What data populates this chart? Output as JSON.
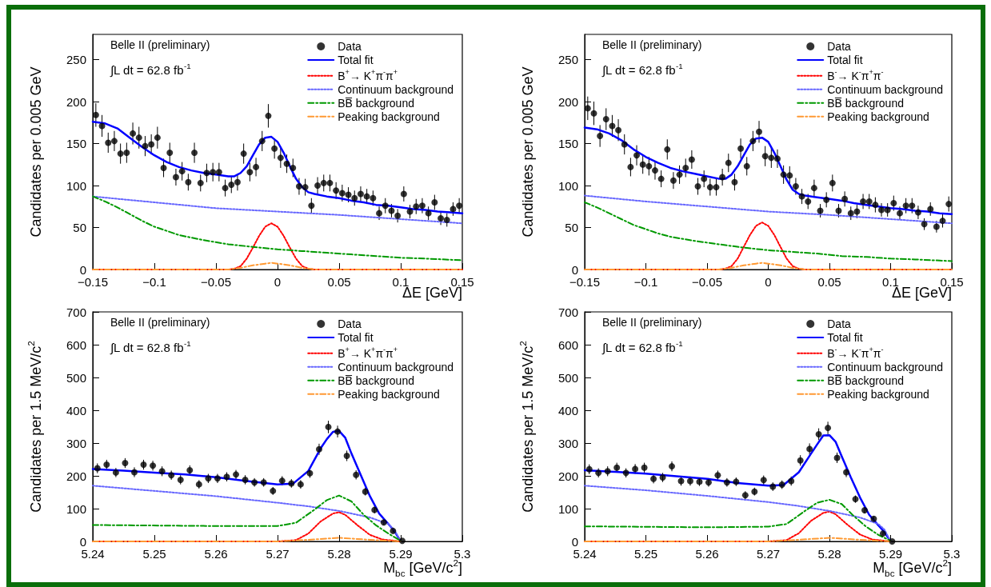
{
  "chart_data": [
    {
      "type": "line",
      "xlabel": "ΔE [GeV]",
      "ylabel": "Candidates per 0.005 GeV",
      "annotations": [
        "Belle II (preliminary)",
        "∫L dt = 62.8 fb$^{-1}$"
      ],
      "legend": "top right",
      "xlim": [
        -0.15,
        0.15
      ],
      "xticks": [
        {
          "value": -0.15,
          "label": "−0.15"
        },
        {
          "value": -0.1,
          "label": "−0.1"
        },
        {
          "value": -0.05,
          "label": "−0.05"
        },
        0,
        0.05,
        0.1,
        0.15
      ],
      "ylim": [
        0,
        280
      ],
      "yticks": [
        0,
        50,
        100,
        150,
        200,
        250
      ],
      "series": [
        {
          "name": "Data",
          "type": "scatter",
          "marker": "circle",
          "color": "#000000",
          "x": [
            -0.1475,
            -0.1425,
            -0.1375,
            -0.1325,
            -0.1275,
            -0.1225,
            -0.1175,
            -0.1125,
            -0.1075,
            -0.1025,
            -0.0975,
            -0.0925,
            -0.0875,
            -0.0825,
            -0.0775,
            -0.0725,
            -0.0675,
            -0.0625,
            -0.0575,
            -0.0525,
            -0.0475,
            -0.0425,
            -0.0375,
            -0.0325,
            -0.0275,
            -0.0225,
            -0.0175,
            -0.0125,
            -0.0075,
            -0.0025,
            0.0025,
            0.0075,
            0.0125,
            0.0175,
            0.0225,
            0.0275,
            0.0325,
            0.0375,
            0.0425,
            0.0475,
            0.0525,
            0.0575,
            0.0625,
            0.0675,
            0.0725,
            0.0775,
            0.0825,
            0.0875,
            0.0925,
            0.0975,
            0.1025,
            0.1075,
            0.1125,
            0.1175,
            0.1225,
            0.1275,
            0.1325,
            0.1375,
            0.1425,
            0.1475
          ],
          "values": [
            184,
            171,
            151,
            153,
            138,
            139,
            162,
            157,
            147,
            149,
            157,
            121,
            139,
            110,
            117,
            104,
            139,
            103,
            115,
            116,
            116,
            97,
            101,
            104,
            138,
            116,
            122,
            153,
            183,
            144,
            133,
            126,
            121,
            99,
            98,
            76,
            100,
            103,
            103,
            94,
            91,
            89,
            85,
            90,
            87,
            85,
            67,
            76,
            70,
            64,
            90,
            69,
            75,
            76,
            67,
            80,
            61,
            59,
            72,
            76
          ],
          "errors": [
            14,
            13,
            12,
            12,
            12,
            12,
            13,
            13,
            12,
            12,
            13,
            11,
            12,
            10,
            11,
            10,
            12,
            10,
            11,
            11,
            11,
            10,
            10,
            10,
            12,
            11,
            11,
            12,
            14,
            12,
            12,
            11,
            11,
            10,
            10,
            9,
            10,
            10,
            10,
            10,
            10,
            9,
            9,
            9,
            9,
            9,
            8,
            9,
            8,
            8,
            9,
            8,
            9,
            9,
            8,
            9,
            8,
            8,
            8,
            9
          ]
        },
        {
          "name": "Total fit",
          "type": "line",
          "marker": "none",
          "line_style": "solid",
          "color": "#0000ff",
          "x": [
            -0.15,
            -0.14,
            -0.13,
            -0.12,
            -0.11,
            -0.1,
            -0.09,
            -0.08,
            -0.07,
            -0.06,
            -0.05,
            -0.04,
            -0.035,
            -0.03,
            -0.025,
            -0.02,
            -0.015,
            -0.01,
            -0.005,
            0,
            0.005,
            0.01,
            0.015,
            0.02,
            0.025,
            0.03,
            0.04,
            0.05,
            0.06,
            0.07,
            0.08,
            0.09,
            0.1,
            0.11,
            0.12,
            0.13,
            0.14,
            0.15
          ],
          "values": [
            176,
            174,
            168,
            157,
            146,
            136,
            128,
            122,
            118,
            115,
            113,
            111,
            111,
            115,
            123,
            136,
            149,
            157,
            158,
            152,
            139,
            123,
            108,
            98,
            92,
            90,
            87,
            85,
            82,
            80,
            77,
            76,
            74,
            72,
            71,
            69,
            68,
            67
          ]
        },
        {
          "name": "B$^{+}$→ K$^{+}$π$^{-}$π$^{+}$",
          "type": "line",
          "marker": "none",
          "line_style": "dotted",
          "color": "#ff0000",
          "x": [
            -0.15,
            -0.04,
            -0.035,
            -0.03,
            -0.025,
            -0.02,
            -0.015,
            -0.01,
            -0.005,
            0,
            0.005,
            0.01,
            0.015,
            0.02,
            0.025,
            0.03,
            0.15
          ],
          "values": [
            0,
            0,
            1,
            4,
            13,
            26,
            40,
            51,
            55,
            51,
            40,
            26,
            13,
            4,
            1,
            0,
            0
          ]
        },
        {
          "name": "Continuum background",
          "type": "line",
          "marker": "none",
          "line_style": "dotted",
          "color": "#6666ff",
          "x": [
            -0.15,
            -0.1,
            -0.05,
            0,
            0.05,
            0.1,
            0.15
          ],
          "values": [
            87,
            80,
            73,
            69,
            65,
            60,
            55
          ]
        },
        {
          "name": "BB̅ background",
          "type": "line",
          "marker": "none",
          "line_style": "dashed",
          "color": "#009900",
          "x": [
            -0.15,
            -0.14,
            -0.13,
            -0.12,
            -0.11,
            -0.1,
            -0.09,
            -0.08,
            -0.06,
            -0.04,
            -0.02,
            0,
            0.02,
            0.04,
            0.06,
            0.08,
            0.1,
            0.12,
            0.15
          ],
          "values": [
            87,
            81,
            74,
            66,
            58,
            51,
            46,
            41,
            35,
            30,
            27,
            24,
            22,
            20,
            18,
            16,
            14,
            13,
            11
          ]
        },
        {
          "name": "Peaking background",
          "type": "line",
          "marker": "none",
          "line_style": "dashed",
          "color": "#ff9933",
          "x": [
            -0.15,
            -0.04,
            -0.03,
            -0.02,
            -0.01,
            -0.005,
            0,
            0.01,
            0.02,
            0.03,
            0.15
          ],
          "values": [
            0,
            0,
            2,
            5,
            7,
            8,
            7,
            5,
            2,
            0,
            0
          ]
        }
      ]
    },
    {
      "type": "line",
      "xlabel": "ΔE [GeV]",
      "ylabel": "Candidates per 0.005 GeV",
      "annotations": [
        "Belle II (preliminary)",
        "∫L dt = 62.8 fb$^{-1}$"
      ],
      "legend": "top right",
      "xlim": [
        -0.15,
        0.15
      ],
      "xticks": [
        {
          "value": -0.15,
          "label": "−0.15"
        },
        {
          "value": -0.1,
          "label": "−0.1"
        },
        {
          "value": -0.05,
          "label": "−0.05"
        },
        0,
        0.05,
        0.1,
        0.15
      ],
      "ylim": [
        0,
        280
      ],
      "yticks": [
        0,
        50,
        100,
        150,
        200,
        250
      ],
      "series": [
        {
          "name": "Data",
          "type": "scatter",
          "marker": "circle",
          "color": "#000000",
          "x": [
            -0.1475,
            -0.1425,
            -0.1375,
            -0.1325,
            -0.1275,
            -0.1225,
            -0.1175,
            -0.1125,
            -0.1075,
            -0.1025,
            -0.0975,
            -0.0925,
            -0.0875,
            -0.0825,
            -0.0775,
            -0.0725,
            -0.0675,
            -0.0625,
            -0.0575,
            -0.0525,
            -0.0475,
            -0.0425,
            -0.0375,
            -0.0325,
            -0.0275,
            -0.0225,
            -0.0175,
            -0.0125,
            -0.0075,
            -0.0025,
            0.0025,
            0.0075,
            0.0125,
            0.0175,
            0.0225,
            0.0275,
            0.0325,
            0.0375,
            0.0425,
            0.0475,
            0.0525,
            0.0575,
            0.0625,
            0.0675,
            0.0725,
            0.0775,
            0.0825,
            0.0875,
            0.0925,
            0.0975,
            0.1025,
            0.1075,
            0.1125,
            0.1175,
            0.1225,
            0.1275,
            0.1325,
            0.1375,
            0.1425,
            0.1475
          ],
          "values": [
            192,
            186,
            159,
            179,
            171,
            166,
            149,
            122,
            136,
            125,
            123,
            118,
            108,
            143,
            106,
            113,
            121,
            131,
            99,
            108,
            98,
            98,
            110,
            127,
            104,
            144,
            123,
            153,
            164,
            135,
            133,
            132,
            113,
            112,
            99,
            87,
            81,
            97,
            70,
            83,
            103,
            70,
            84,
            67,
            69,
            81,
            81,
            77,
            71,
            71,
            79,
            67,
            76,
            76,
            68,
            54,
            72,
            51,
            58,
            78
          ],
          "errors": [
            14,
            14,
            13,
            13,
            13,
            13,
            12,
            11,
            12,
            11,
            11,
            11,
            10,
            12,
            10,
            11,
            11,
            11,
            10,
            10,
            10,
            10,
            10,
            11,
            10,
            12,
            11,
            12,
            13,
            12,
            12,
            11,
            11,
            11,
            10,
            9,
            9,
            10,
            8,
            9,
            10,
            8,
            9,
            8,
            8,
            9,
            9,
            9,
            8,
            8,
            9,
            8,
            9,
            9,
            8,
            7,
            8,
            7,
            8,
            9
          ]
        },
        {
          "name": "Total fit",
          "type": "line",
          "marker": "none",
          "line_style": "solid",
          "color": "#0000ff",
          "x": [
            -0.15,
            -0.14,
            -0.13,
            -0.12,
            -0.11,
            -0.1,
            -0.09,
            -0.08,
            -0.07,
            -0.06,
            -0.05,
            -0.04,
            -0.035,
            -0.03,
            -0.025,
            -0.02,
            -0.015,
            -0.01,
            -0.005,
            0,
            0.005,
            0.01,
            0.015,
            0.02,
            0.025,
            0.03,
            0.04,
            0.05,
            0.06,
            0.07,
            0.08,
            0.09,
            0.1,
            0.11,
            0.12,
            0.13,
            0.14,
            0.15
          ],
          "values": [
            169,
            167,
            162,
            154,
            143,
            134,
            127,
            121,
            117,
            114,
            111,
            108,
            108,
            113,
            123,
            136,
            149,
            156,
            157,
            152,
            139,
            123,
            107,
            95,
            90,
            88,
            86,
            84,
            82,
            79,
            77,
            75,
            73,
            72,
            70,
            69,
            67,
            66
          ]
        },
        {
          "name": "B$^{-}$→ K$^{-}$π$^{+}$π$^{-}$",
          "type": "line",
          "marker": "none",
          "line_style": "dotted",
          "color": "#ff0000",
          "x": [
            -0.15,
            -0.04,
            -0.035,
            -0.03,
            -0.025,
            -0.02,
            -0.015,
            -0.01,
            -0.005,
            0,
            0.005,
            0.01,
            0.015,
            0.02,
            0.025,
            0.03,
            0.15
          ],
          "values": [
            0,
            0,
            1,
            4,
            13,
            27,
            41,
            52,
            56,
            52,
            41,
            27,
            13,
            4,
            1,
            0,
            0
          ]
        },
        {
          "name": "Continuum background",
          "type": "line",
          "marker": "none",
          "line_style": "dotted",
          "color": "#6666ff",
          "x": [
            -0.15,
            -0.1,
            -0.05,
            0,
            0.05,
            0.1,
            0.15
          ],
          "values": [
            88,
            81,
            75,
            69,
            65,
            60,
            55
          ]
        },
        {
          "name": "BB̅ background",
          "type": "line",
          "marker": "none",
          "line_style": "dashed",
          "color": "#009900",
          "x": [
            -0.15,
            -0.14,
            -0.13,
            -0.12,
            -0.11,
            -0.1,
            -0.09,
            -0.08,
            -0.06,
            -0.04,
            -0.02,
            0,
            0.02,
            0.04,
            0.06,
            0.08,
            0.1,
            0.12,
            0.15
          ],
          "values": [
            80,
            74,
            67,
            60,
            53,
            48,
            43,
            39,
            34,
            30,
            26,
            23,
            21,
            19,
            16,
            15,
            13,
            12,
            10
          ]
        },
        {
          "name": "Peaking background",
          "type": "line",
          "marker": "none",
          "line_style": "dashed",
          "color": "#ff9933",
          "x": [
            -0.15,
            -0.04,
            -0.03,
            -0.02,
            -0.01,
            -0.005,
            0,
            0.01,
            0.02,
            0.03,
            0.15
          ],
          "values": [
            0,
            0,
            2,
            5,
            7,
            8,
            7,
            5,
            2,
            0,
            0
          ]
        }
      ]
    },
    {
      "type": "line",
      "xlabel": "M$_{bc}$ [GeV/c$^{2}$]",
      "ylabel": "Candidates per 1.5 MeV/c$^{2}$",
      "annotations": [
        "Belle II (preliminary)",
        "∫L dt = 62.8 fb$^{-1}$"
      ],
      "legend": "top right",
      "xlim": [
        5.24,
        5.3
      ],
      "xticks": [
        5.24,
        5.25,
        5.26,
        5.27,
        5.28,
        5.29,
        5.3
      ],
      "ylim": [
        0,
        700
      ],
      "yticks": [
        0,
        100,
        200,
        300,
        400,
        500,
        600,
        700
      ],
      "series": [
        {
          "name": "Data",
          "type": "scatter",
          "marker": "circle",
          "color": "#000000",
          "x": [
            5.24075,
            5.24225,
            5.24375,
            5.24525,
            5.24675,
            5.24825,
            5.24975,
            5.25125,
            5.25275,
            5.25425,
            5.25575,
            5.25725,
            5.25875,
            5.26025,
            5.26175,
            5.26325,
            5.26475,
            5.26625,
            5.26775,
            5.26925,
            5.27075,
            5.27225,
            5.27375,
            5.27525,
            5.27675,
            5.27825,
            5.27975,
            5.28125,
            5.28275,
            5.28425,
            5.28575,
            5.28725,
            5.28875,
            5.29025
          ],
          "values": [
            223,
            234,
            210,
            239,
            211,
            234,
            231,
            214,
            202,
            188,
            217,
            174,
            192,
            192,
            197,
            204,
            188,
            180,
            180,
            154,
            185,
            177,
            174,
            208,
            281,
            349,
            335,
            261,
            203,
            152,
            96,
            58,
            32,
            2
          ],
          "errors": [
            15,
            15,
            14,
            15,
            15,
            15,
            15,
            15,
            14,
            14,
            15,
            13,
            14,
            14,
            14,
            14,
            14,
            13,
            13,
            12,
            14,
            13,
            13,
            14,
            17,
            19,
            18,
            16,
            14,
            12,
            10,
            8,
            6,
            null
          ]
        },
        {
          "name": "Total fit",
          "type": "line",
          "marker": "none",
          "line_style": "solid",
          "color": "#0000ff",
          "x": [
            5.24,
            5.245,
            5.25,
            5.255,
            5.26,
            5.265,
            5.27,
            5.2725,
            5.275,
            5.277,
            5.278,
            5.279,
            5.28,
            5.281,
            5.282,
            5.2835,
            5.285,
            5.2865,
            5.288,
            5.289,
            5.29
          ],
          "values": [
            221,
            216,
            210,
            204,
            196,
            184,
            174,
            176,
            215,
            284,
            312,
            334,
            337,
            316,
            268,
            203,
            138,
            85,
            53,
            31,
            0
          ]
        },
        {
          "name": "B$^{+}$→ K$^{+}$π$^{-}$π$^{+}$",
          "type": "line",
          "marker": "none",
          "line_style": "dotted",
          "color": "#ff0000",
          "x": [
            5.24,
            5.27,
            5.273,
            5.275,
            5.277,
            5.279,
            5.28,
            5.281,
            5.283,
            5.285,
            5.287,
            5.29
          ],
          "values": [
            0,
            0,
            4,
            24,
            61,
            85,
            89,
            81,
            49,
            20,
            6,
            0
          ]
        },
        {
          "name": "Continuum background",
          "type": "line",
          "marker": "none",
          "line_style": "dotted",
          "color": "#6666ff",
          "x": [
            5.24,
            5.25,
            5.26,
            5.27,
            5.275,
            5.28,
            5.285,
            5.288,
            5.289,
            5.29
          ],
          "values": [
            170,
            154,
            138,
            118,
            107,
            93,
            73,
            53,
            34,
            0
          ]
        },
        {
          "name": "BB̅ background",
          "type": "line",
          "marker": "none",
          "line_style": "dashed",
          "color": "#009900",
          "x": [
            5.24,
            5.26,
            5.27,
            5.273,
            5.276,
            5.278,
            5.28,
            5.282,
            5.284,
            5.286,
            5.288,
            5.29
          ],
          "values": [
            50,
            47,
            47,
            57,
            97,
            126,
            140,
            122,
            81,
            49,
            24,
            2
          ]
        },
        {
          "name": "Peaking background",
          "type": "line",
          "marker": "none",
          "line_style": "dashed",
          "color": "#ff9933",
          "x": [
            5.24,
            5.27,
            5.275,
            5.28,
            5.285,
            5.29
          ],
          "values": [
            0,
            0,
            5,
            11,
            5,
            0
          ]
        }
      ]
    },
    {
      "type": "line",
      "xlabel": "M$_{bc}$ [GeV/c$^{2}$]",
      "ylabel": "Candidates per 1.5 MeV/c$^{2}$",
      "annotations": [
        "Belle II (preliminary)",
        "∫L dt = 62.8 fb$^{-1}$"
      ],
      "legend": "top right",
      "xlim": [
        5.24,
        5.3
      ],
      "xticks": [
        5.24,
        5.25,
        5.26,
        5.27,
        5.28,
        5.29,
        5.3
      ],
      "ylim": [
        0,
        700
      ],
      "yticks": [
        0,
        100,
        200,
        300,
        400,
        500,
        600,
        700
      ],
      "series": [
        {
          "name": "Data",
          "type": "scatter",
          "marker": "circle",
          "color": "#000000",
          "x": [
            5.24075,
            5.24225,
            5.24375,
            5.24525,
            5.24675,
            5.24825,
            5.24975,
            5.25125,
            5.25275,
            5.25425,
            5.25575,
            5.25725,
            5.25875,
            5.26025,
            5.26175,
            5.26325,
            5.26475,
            5.26625,
            5.26775,
            5.26925,
            5.27075,
            5.27225,
            5.27375,
            5.27525,
            5.27675,
            5.27825,
            5.27975,
            5.28125,
            5.28275,
            5.28425,
            5.28575,
            5.28725,
            5.28875,
            5.29025
          ],
          "values": [
            220,
            209,
            214,
            225,
            209,
            221,
            225,
            191,
            195,
            229,
            184,
            184,
            182,
            180,
            202,
            180,
            182,
            141,
            152,
            187,
            167,
            173,
            184,
            247,
            282,
            327,
            346,
            255,
            211,
            129,
            95,
            69,
            24,
            0
          ],
          "errors": [
            15,
            14,
            15,
            15,
            14,
            15,
            15,
            14,
            14,
            15,
            14,
            14,
            13,
            13,
            14,
            13,
            13,
            12,
            12,
            14,
            13,
            13,
            14,
            16,
            17,
            18,
            19,
            16,
            15,
            11,
            10,
            8,
            5,
            null
          ]
        },
        {
          "name": "Total fit",
          "type": "line",
          "marker": "none",
          "line_style": "solid",
          "color": "#0000ff",
          "x": [
            5.24,
            5.245,
            5.25,
            5.255,
            5.26,
            5.265,
            5.27,
            5.2725,
            5.275,
            5.277,
            5.278,
            5.279,
            5.28,
            5.281,
            5.282,
            5.2835,
            5.285,
            5.2865,
            5.288,
            5.289,
            5.29
          ],
          "values": [
            217,
            212,
            207,
            199,
            191,
            178,
            170,
            172,
            211,
            268,
            296,
            323,
            324,
            304,
            260,
            195,
            134,
            81,
            49,
            28,
            0
          ]
        },
        {
          "name": "B$^{-}$→ K$^{-}$π$^{+}$π$^{-}$",
          "type": "line",
          "marker": "none",
          "line_style": "dotted",
          "color": "#ff0000",
          "x": [
            5.24,
            5.27,
            5.273,
            5.275,
            5.277,
            5.279,
            5.28,
            5.281,
            5.283,
            5.285,
            5.287,
            5.29
          ],
          "values": [
            0,
            0,
            4,
            25,
            63,
            87,
            91,
            83,
            50,
            21,
            6,
            0
          ]
        },
        {
          "name": "Continuum background",
          "type": "line",
          "marker": "none",
          "line_style": "dotted",
          "color": "#6666ff",
          "x": [
            5.24,
            5.25,
            5.26,
            5.27,
            5.275,
            5.28,
            5.285,
            5.288,
            5.289,
            5.29
          ],
          "values": [
            170,
            156,
            139,
            120,
            108,
            93,
            73,
            53,
            36,
            0
          ]
        },
        {
          "name": "BB̅ background",
          "type": "line",
          "marker": "none",
          "line_style": "dashed",
          "color": "#009900",
          "x": [
            5.24,
            5.26,
            5.27,
            5.273,
            5.276,
            5.278,
            5.28,
            5.282,
            5.284,
            5.286,
            5.288,
            5.29
          ],
          "values": [
            46,
            43,
            45,
            53,
            93,
            118,
            127,
            114,
            77,
            45,
            20,
            2
          ]
        },
        {
          "name": "Peaking background",
          "type": "line",
          "marker": "none",
          "line_style": "dashed",
          "color": "#ff9933",
          "x": [
            5.24,
            5.27,
            5.275,
            5.28,
            5.285,
            5.29
          ],
          "values": [
            0,
            0,
            5,
            11,
            5,
            0
          ]
        }
      ]
    }
  ]
}
